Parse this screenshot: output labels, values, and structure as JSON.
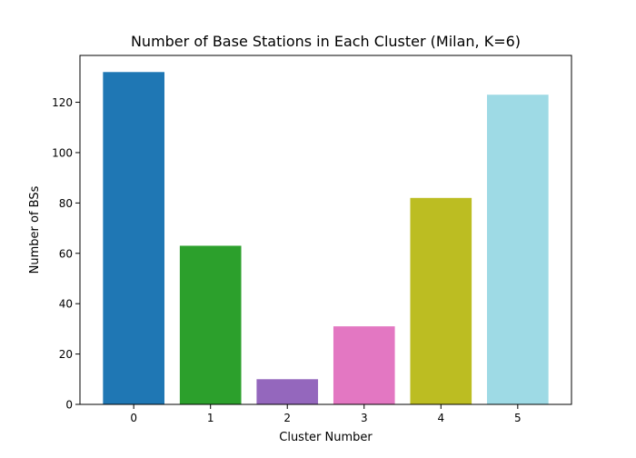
{
  "chart_data": {
    "type": "bar",
    "title": "Number of Base Stations in Each Cluster (Milan, K=6)",
    "xlabel": "Cluster Number",
    "ylabel": "Number of BSs",
    "categories": [
      "0",
      "1",
      "2",
      "3",
      "4",
      "5"
    ],
    "values": [
      132,
      63,
      10,
      31,
      82,
      123
    ],
    "colors": [
      "#1f77b4",
      "#2ca02c",
      "#9467bd",
      "#e377c2",
      "#bcbd22",
      "#9edae5"
    ],
    "yticks": [
      0,
      20,
      40,
      60,
      80,
      100,
      120
    ],
    "ylim": [
      0,
      138.6
    ],
    "xlim": [
      -0.7,
      5.7
    ],
    "grid": false,
    "legend": "none"
  }
}
